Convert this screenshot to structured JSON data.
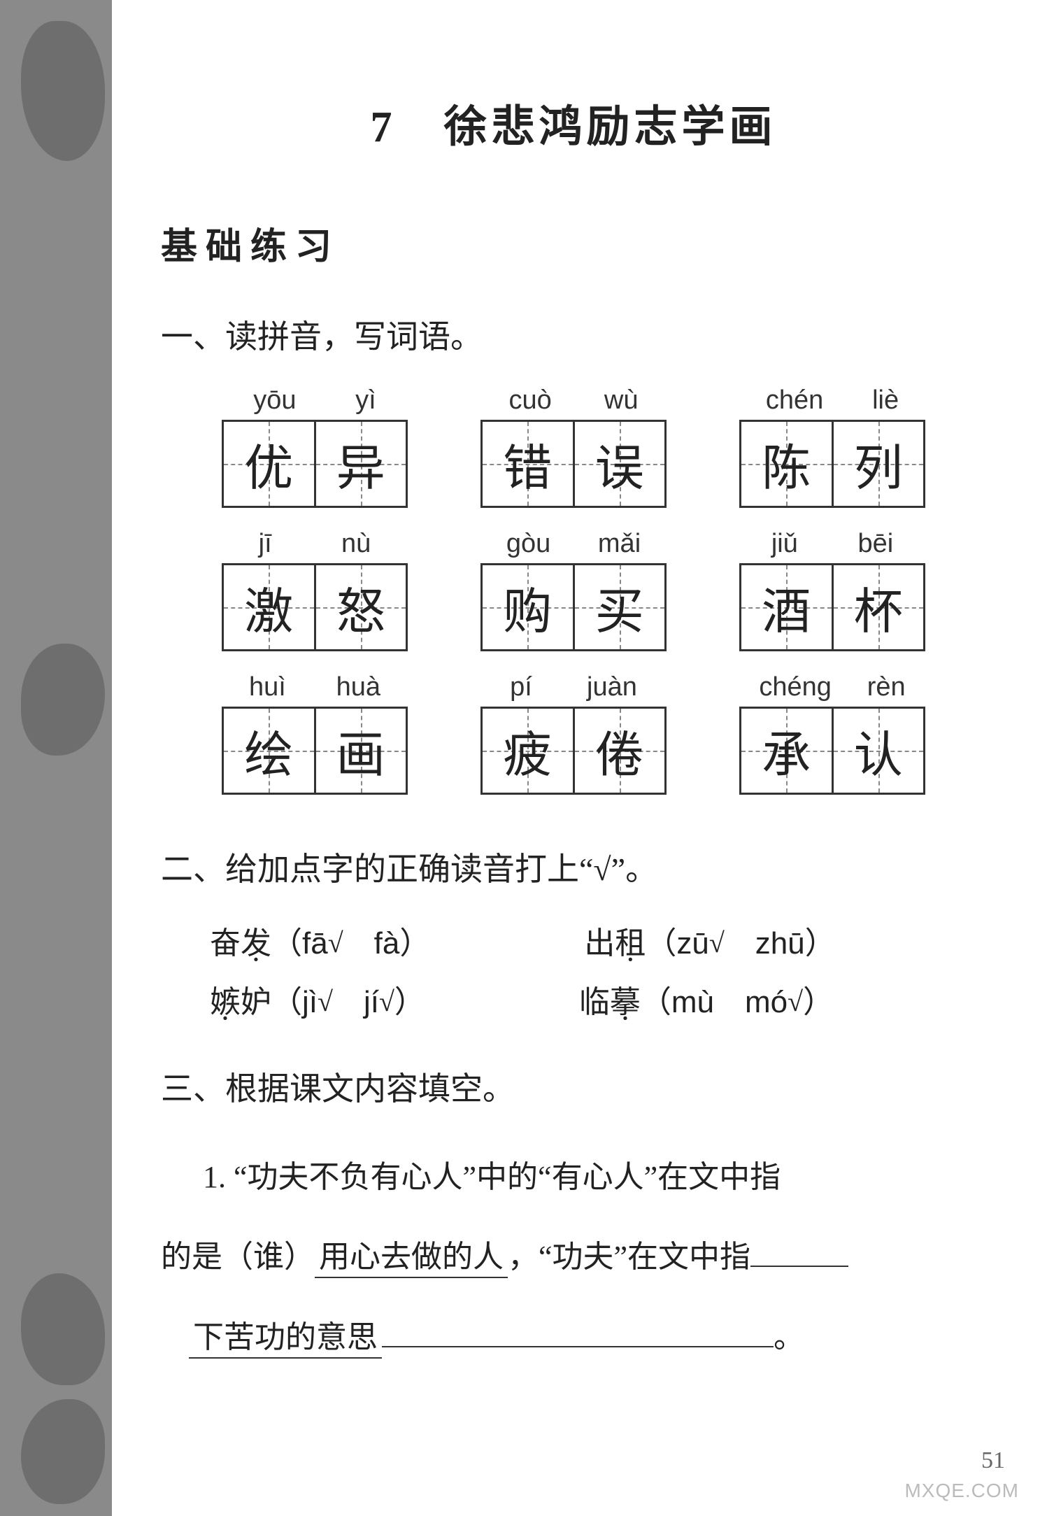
{
  "title": "7　徐悲鸿励志学画",
  "section_heading": "基础练习",
  "ex1": {
    "instruction": "一、读拼音，写词语。",
    "words": [
      {
        "pinyin": [
          "yōu",
          "yì"
        ],
        "chars": [
          "优",
          "异"
        ]
      },
      {
        "pinyin": [
          "cuò",
          "wù"
        ],
        "chars": [
          "错",
          "误"
        ]
      },
      {
        "pinyin": [
          "chén",
          "liè"
        ],
        "chars": [
          "陈",
          "列"
        ]
      },
      {
        "pinyin": [
          "jī",
          "nù"
        ],
        "chars": [
          "激",
          "怒"
        ]
      },
      {
        "pinyin": [
          "gòu",
          "mǎi"
        ],
        "chars": [
          "购",
          "买"
        ]
      },
      {
        "pinyin": [
          "jiǔ",
          "bēi"
        ],
        "chars": [
          "酒",
          "杯"
        ]
      },
      {
        "pinyin": [
          "huì",
          "huà"
        ],
        "chars": [
          "绘",
          "画"
        ]
      },
      {
        "pinyin": [
          "pí",
          "juàn"
        ],
        "chars": [
          "疲",
          "倦"
        ]
      },
      {
        "pinyin": [
          "chéng",
          "rèn"
        ],
        "chars": [
          "承",
          "认"
        ]
      }
    ]
  },
  "ex2": {
    "instruction": "二、给加点字的正确读音打上“√”。",
    "items": [
      {
        "before": "奋",
        "dotted": "发",
        "after": "",
        "choices": [
          "fā",
          "fà"
        ],
        "correct_index": 0
      },
      {
        "before": "出",
        "dotted": "租",
        "after": "",
        "choices": [
          "zū",
          "zhū"
        ],
        "correct_index": 0
      },
      {
        "before": "",
        "dotted": "嫉",
        "after": "妒",
        "choices": [
          "jì",
          "jí"
        ],
        "correct_index": 1,
        "check_on_first": true
      },
      {
        "before": "临",
        "dotted": "摹",
        "after": "",
        "choices": [
          "mù",
          "mó"
        ],
        "correct_index": 1
      }
    ]
  },
  "ex3": {
    "instruction": "三、根据课文内容填空。",
    "q1_label": "1.",
    "q1_open": "“功夫不负有心人”中的“有心人”在文中指",
    "q1_line2a": "的是（谁）",
    "q1_ans1": "用心去做的人",
    "q1_mid": "，“功夫”在文中指",
    "q1_ans2": "下苦功的意思",
    "q1_end": "。"
  },
  "page_number": "51",
  "watermark": "MXQE.COM",
  "checkmark": "√"
}
